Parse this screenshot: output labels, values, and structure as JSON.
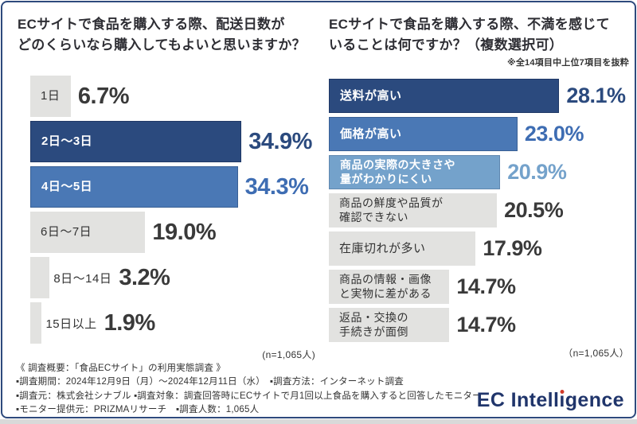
{
  "colors": {
    "border_navy": "#2e4a7d",
    "navy": "#2b4a7e",
    "blue": "#4a78b5",
    "light_blue": "#74a2cb",
    "gray_bar": "#e2e2e0",
    "logo_navy": "#20356b",
    "logo_dot_red": "#d23b2a"
  },
  "chart_data": [
    {
      "type": "bar",
      "orientation": "horizontal",
      "title": "ECサイトで食品を購入する際、配送日数がどのくらいなら購入してもよいと思いますか？",
      "title_display": "ECサイトで食品を購入する際、配送日数が\nどのくらいなら購入してもよいと思いますか？",
      "unit": "%",
      "xlim": [
        0,
        40
      ],
      "grid": false,
      "legend": "none",
      "categories": [
        "1日",
        "2日〜3日",
        "4日〜5日",
        "6日〜7日",
        "8日〜14日",
        "15日以上"
      ],
      "values": [
        6.7,
        34.9,
        34.3,
        19.0,
        3.2,
        1.9
      ],
      "pct_labels": [
        "6.7%",
        "34.9%",
        "34.3%",
        "19.0%",
        "3.2%",
        "1.9%"
      ],
      "label_display": [
        "1日",
        "2日〜3日",
        "4日〜5日",
        "6日〜7日",
        "8日〜14日",
        "15日以上"
      ],
      "bar_color_names": [
        "gray",
        "navy",
        "blue",
        "gray",
        "gray",
        "gray"
      ],
      "n_label": "(n=1,065人)"
    },
    {
      "type": "bar",
      "orientation": "horizontal",
      "title": "ECサイトで食品を購入する際、不満を感じていることは何ですか？（複数選択可）",
      "title_display": "ECサイトで食品を購入する際、不満を感じて\nいることは何ですか？（複数選択可）",
      "note": "※全14項目中上位7項目を抜粋",
      "unit": "%",
      "xlim": [
        0,
        30
      ],
      "grid": false,
      "legend": "none",
      "categories": [
        "送料が高い",
        "価格が高い",
        "商品の実際の大きさや量がわかりにくい",
        "商品の鮮度や品質が確認できない",
        "在庫切れが多い",
        "商品の情報・画像と実物に差がある",
        "返品・交換の手続きが面倒"
      ],
      "values": [
        28.1,
        23.0,
        20.9,
        20.5,
        17.9,
        14.7,
        14.7
      ],
      "pct_labels": [
        "28.1%",
        "23.0%",
        "20.9%",
        "20.5%",
        "17.9%",
        "14.7%",
        "14.7%"
      ],
      "label_display": [
        "送料が高い",
        "価格が高い",
        "商品の実際の大きさや\n量がわかりにくい",
        "商品の鮮度や品質が\n確認できない",
        "在庫切れが多い",
        "商品の情報・画像\nと実物に差がある",
        "返品・交換の\n手続きが面倒"
      ],
      "bar_color_names": [
        "navy",
        "blue",
        "lightblue",
        "gray",
        "gray",
        "gray",
        "gray"
      ],
      "n_label": "（n=1,065人）"
    }
  ],
  "survey": {
    "header": "《 調査概要：「食品ECサイト」の利用実態調査 》",
    "lines": [
      "▪調査期間：2024年12月9日（月）〜2024年12月11日（水）　▪調査方法：インターネット調査",
      "▪調査元：株式会社シナブル ▪調査対象：調査回答時にECサイトで月1回以上食品を購入すると回答したモニター",
      "▪モニター提供元：PRIZMAリサーチ　▪調査人数：1,065人"
    ]
  },
  "logo": {
    "text": "EC Intelligence",
    "pre": "EC Intell",
    "i_char": "ı",
    "post": "gence"
  }
}
